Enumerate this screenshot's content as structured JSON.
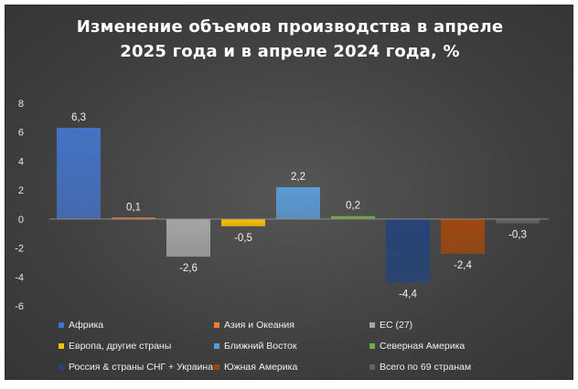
{
  "chart_data": {
    "type": "bar",
    "title": "Изменение объемов производства в апреле\n2025 года и в апреле 2024 года, %",
    "xlabel": "",
    "ylabel": "",
    "ylim": [
      -6,
      8
    ],
    "yticks": [
      -6,
      -4,
      -2,
      0,
      2,
      4,
      6,
      8
    ],
    "ytick_labels": [
      "-6",
      "-4",
      "-2",
      "0",
      "2",
      "4",
      "6",
      "8"
    ],
    "grid": false,
    "legend_position": "bottom",
    "series": [
      {
        "name": "Африка",
        "value": 6.3,
        "label": "6,3",
        "color": "#4472c4"
      },
      {
        "name": "Азия и Океания",
        "value": 0.1,
        "label": "0,1",
        "color": "#ed7d31"
      },
      {
        "name": "ЕС (27)",
        "value": -2.6,
        "label": "-2,6",
        "color": "#a5a5a5"
      },
      {
        "name": "Европа, другие страны",
        "value": -0.5,
        "label": "-0,5",
        "color": "#ffc000"
      },
      {
        "name": "Ближний Восток",
        "value": 2.2,
        "label": "2,2",
        "color": "#5b9bd5"
      },
      {
        "name": "Северная Америка",
        "value": 0.2,
        "label": "0,2",
        "color": "#70ad47"
      },
      {
        "name": "Россия & страны СНГ + Украина",
        "value": -4.4,
        "label": "-4,4",
        "color": "#264478"
      },
      {
        "name": "Южная Америка",
        "value": -2.4,
        "label": "-2,4",
        "color": "#9e480e"
      },
      {
        "name": "Всего по 69 странам",
        "value": -0.3,
        "label": "-0,3",
        "color": "#636363"
      }
    ]
  }
}
